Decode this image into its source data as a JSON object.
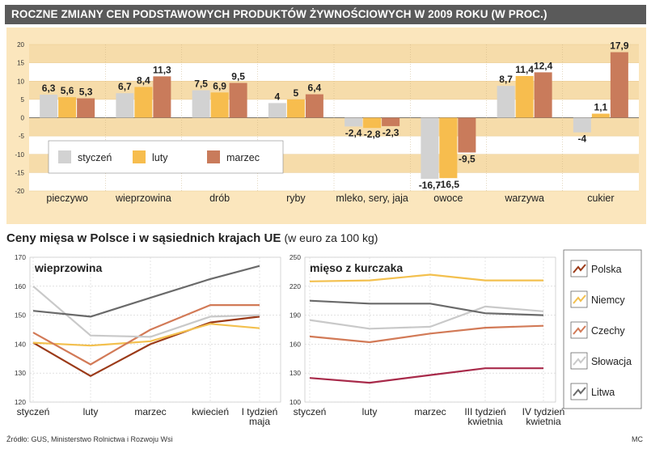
{
  "header": {
    "title": "ROCZNE ZMIANY CEN PODSTAWOWYCH PRODUKTÓW ŻYWNOŚCIOWYCH W 2009 ROKU (W PROC.)"
  },
  "section2": {
    "title": "Ceny mięsa w Polsce i w sąsiednich krajach UE",
    "subtitle": "(w euro za 100 kg)"
  },
  "footer": {
    "source": "Źródło: GUS, Ministerstwo Rolnictwa i Rozwoju Wsi",
    "author": "MC"
  },
  "colors": {
    "styczen": "#d2d2d2",
    "luty": "#f7bd4e",
    "marzec": "#c97b5b",
    "band": "#f6dcaa",
    "polska": "#9b3a18",
    "niemcy": "#f3c04e",
    "czechy": "#d27a57",
    "slowacja": "#c9c9c9",
    "litwa": "#6a6a6a",
    "kurczak_polska": "#a82a4a"
  },
  "chart_data": [
    {
      "type": "bar",
      "title": "ROCZNE ZMIANY CEN PODSTAWOWYCH PRODUKTÓW ŻYWNOŚCIOWYCH W 2009 ROKU (W PROC.)",
      "categories": [
        "pieczywo",
        "wieprzowina",
        "drób",
        "ryby",
        "mleko, sery, jaja",
        "owoce",
        "warzywa",
        "cukier"
      ],
      "series": [
        {
          "name": "styczeń",
          "values": [
            6.3,
            6.7,
            7.5,
            4,
            -2.4,
            -16.7,
            8.7,
            -4
          ]
        },
        {
          "name": "luty",
          "values": [
            5.6,
            8.4,
            6.9,
            5,
            -2.8,
            -16.5,
            11.4,
            1.1
          ]
        },
        {
          "name": "marzec",
          "values": [
            5.3,
            11.3,
            9.5,
            6.4,
            -2.3,
            -9.5,
            12.4,
            17.9
          ]
        }
      ],
      "labels": [
        [
          "6,3",
          "6,7",
          "7,5",
          "4",
          "-2,4",
          "-16,7",
          "8,7",
          "-4"
        ],
        [
          "5,6",
          "8,4",
          "6,9",
          "5",
          "-2,8",
          "-16,5",
          "11,4",
          "1,1"
        ],
        [
          "5,3",
          "11,3",
          "9,5",
          "6,4",
          "-2,3",
          "-9,5",
          "12,4",
          "17,9"
        ]
      ],
      "ylim": [
        -20,
        20
      ],
      "yticks": [
        "20",
        "15",
        "10",
        "5",
        "0",
        "-5",
        "-10",
        "-15",
        "-20"
      ],
      "legend": [
        "styczeń",
        "luty",
        "marzec"
      ]
    },
    {
      "type": "line",
      "title": "wieprzowina",
      "categories": [
        "styczeń",
        "luty",
        "marzec",
        "kwiecień",
        "I tydzień maja"
      ],
      "ylim": [
        120,
        170
      ],
      "yticks": [
        "170",
        "160",
        "150",
        "140",
        "130",
        "120"
      ],
      "series": [
        {
          "name": "Polska",
          "values": [
            140.5,
            129,
            140,
            147.5,
            149.5
          ]
        },
        {
          "name": "Niemcy",
          "values": [
            140.5,
            139.5,
            141,
            147,
            145.5
          ]
        },
        {
          "name": "Czechy",
          "values": [
            144,
            133,
            145,
            153.5,
            153.5
          ]
        },
        {
          "name": "Słowacja",
          "values": [
            160,
            143,
            142.5,
            149.5,
            150
          ]
        },
        {
          "name": "Litwa",
          "values": [
            151.5,
            149.5,
            156,
            162.5,
            167
          ]
        }
      ]
    },
    {
      "type": "line",
      "title": "mięso z kurczaka",
      "categories": [
        "styczeń",
        "luty",
        "marzec",
        "III tydzień kwietnia",
        "IV tydzień kwietnia"
      ],
      "ylim": [
        100,
        250
      ],
      "yticks": [
        "250",
        "220",
        "190",
        "160",
        "130",
        "100"
      ],
      "series": [
        {
          "name": "Polska",
          "values": [
            125,
            120,
            128,
            135,
            135
          ]
        },
        {
          "name": "Niemcy",
          "values": [
            225,
            226,
            232,
            226,
            226
          ]
        },
        {
          "name": "Czechy",
          "values": [
            168,
            162,
            171,
            177,
            179
          ]
        },
        {
          "name": "Słowacja",
          "values": [
            185,
            176,
            178,
            199,
            194
          ]
        },
        {
          "name": "Litwa",
          "values": [
            205,
            202,
            202,
            192,
            190
          ]
        }
      ]
    }
  ],
  "legend2": [
    "Polska",
    "Niemcy",
    "Czechy",
    "Słowacja",
    "Litwa"
  ]
}
